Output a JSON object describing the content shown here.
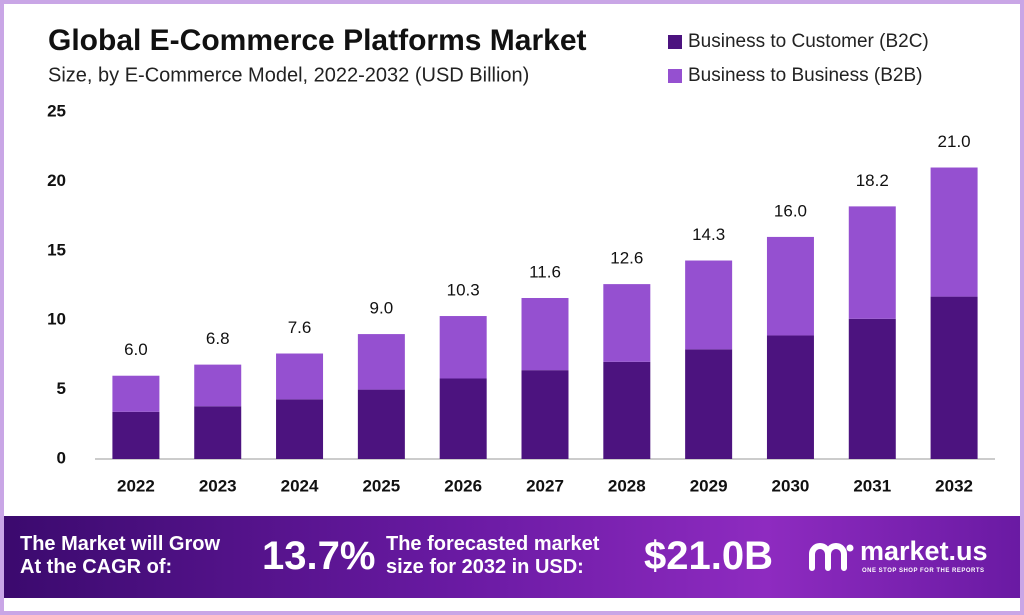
{
  "chart_data": {
    "type": "stacked_bar",
    "title": "Global E-Commerce Platforms Market",
    "subtitle": "Size, by E-Commerce Model, 2022-2032 (USD Billion)",
    "categories": [
      "2022",
      "2023",
      "2024",
      "2025",
      "2026",
      "2027",
      "2028",
      "2029",
      "2030",
      "2031",
      "2032"
    ],
    "series": [
      {
        "name": "Business to Customer (B2C)",
        "color": "#4c137f",
        "values": [
          3.4,
          3.8,
          4.3,
          5.0,
          5.8,
          6.4,
          7.0,
          7.9,
          8.9,
          10.1,
          11.7
        ]
      },
      {
        "name": "Business to Business (B2B)",
        "color": "#9550d0",
        "values": [
          2.6,
          3.0,
          3.3,
          4.0,
          4.5,
          5.2,
          5.6,
          6.4,
          7.1,
          8.1,
          9.3
        ]
      }
    ],
    "totals": [
      6.0,
      6.8,
      7.6,
      9.0,
      10.3,
      11.6,
      12.6,
      14.3,
      16.0,
      18.2,
      21.0
    ],
    "total_labels": [
      "6.0",
      "6.8",
      "7.6",
      "9.0",
      "10.3",
      "11.6",
      "12.6",
      "14.3",
      "16.0",
      "18.2",
      "21.0"
    ],
    "ylim": [
      0,
      25
    ],
    "yticks": [
      0,
      5,
      10,
      15,
      20,
      25
    ],
    "grid": false,
    "legend": "top-right"
  },
  "footer": {
    "cagr_text": [
      "The Market will Grow",
      "At the CAGR of:"
    ],
    "cagr_value": "13.7%",
    "forecast_text": [
      "The forecasted market",
      "size for 2032 in USD:"
    ],
    "forecast_value": "$21.0B",
    "brand": "market.us",
    "tagline": "ONE STOP SHOP FOR THE REPORTS"
  }
}
